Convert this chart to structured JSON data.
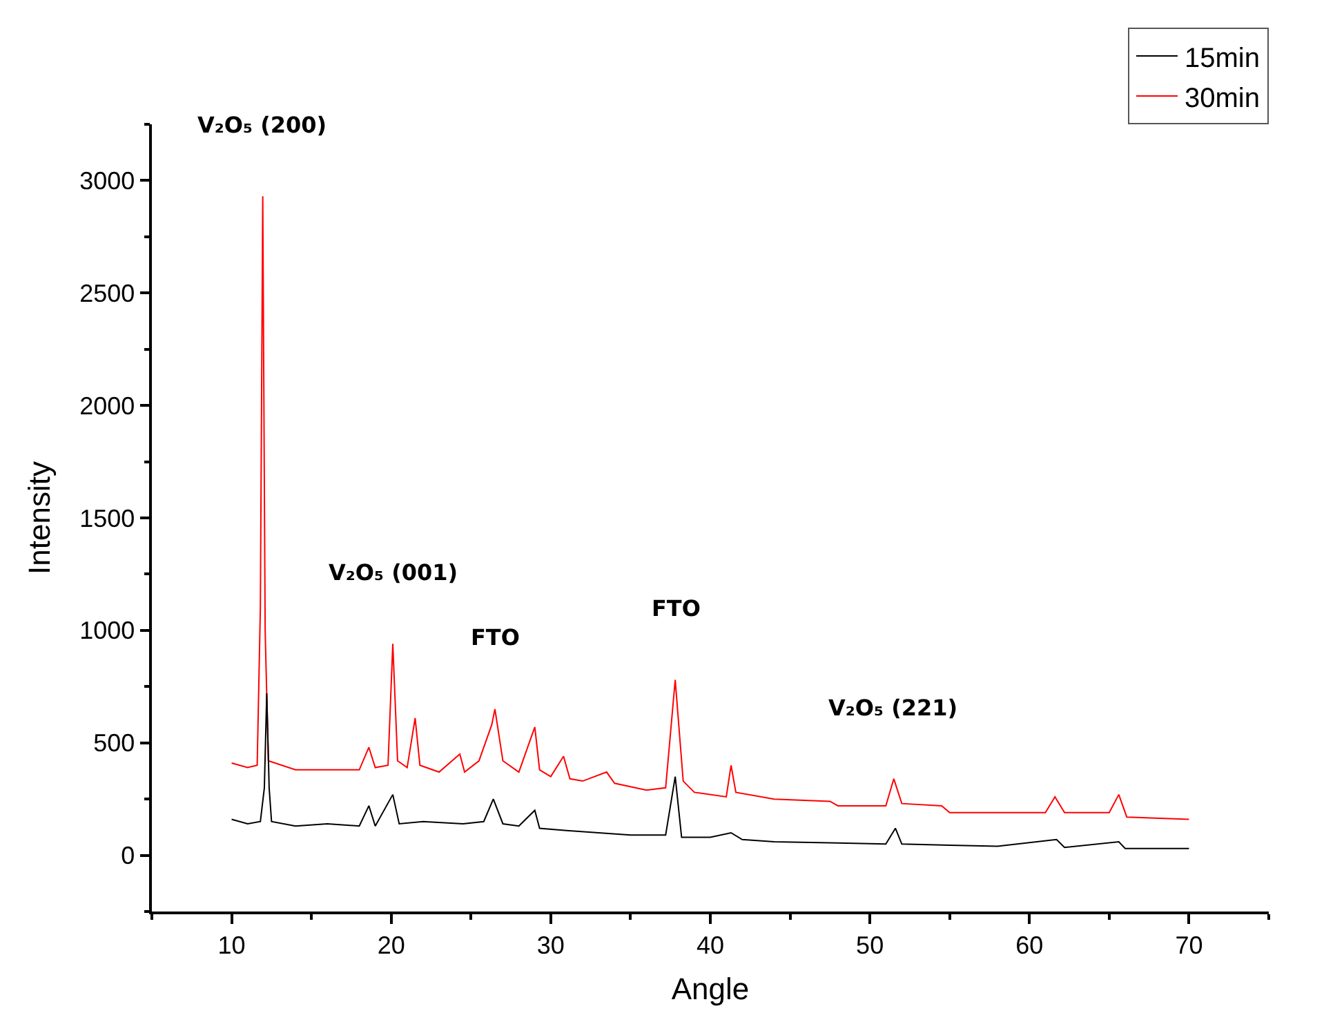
{
  "chart_data": {
    "type": "line",
    "xlabel": "Angle",
    "ylabel": "Intensity",
    "xlim": [
      5,
      75
    ],
    "xticks": [
      10,
      20,
      30,
      40,
      50,
      60,
      70
    ],
    "ylim": [
      -250,
      3250
    ],
    "yticks": [
      0,
      500,
      1000,
      1500,
      2000,
      2500,
      3000
    ],
    "grid": false,
    "legend": "top right",
    "marker": "none",
    "line_style": "solid",
    "series": [
      {
        "name": "15min",
        "color": "#000000",
        "x": [
          10,
          11,
          11.8,
          12.05,
          12.2,
          12.35,
          12.5,
          14,
          16,
          18,
          18.6,
          19,
          20.1,
          20.5,
          22,
          24.5,
          25.8,
          26.4,
          27,
          28,
          29,
          29.3,
          31,
          33,
          35,
          37.2,
          37.8,
          38.2,
          40,
          41.3,
          42,
          44,
          48,
          51,
          51.6,
          52,
          55,
          58,
          61.7,
          62.2,
          65.6,
          66,
          70
        ],
        "values": [
          160,
          140,
          150,
          300,
          720,
          300,
          150,
          130,
          140,
          130,
          220,
          130,
          270,
          140,
          150,
          140,
          150,
          250,
          140,
          130,
          200,
          120,
          110,
          100,
          90,
          90,
          350,
          80,
          80,
          100,
          70,
          60,
          55,
          50,
          120,
          50,
          45,
          40,
          70,
          35,
          60,
          30,
          30
        ]
      },
      {
        "name": "30min",
        "color": "#ff0000",
        "x": [
          10,
          11,
          11.6,
          11.8,
          11.95,
          12.1,
          12.3,
          14,
          16,
          18,
          18.6,
          19,
          19.8,
          20.1,
          20.4,
          21,
          21.5,
          21.8,
          23,
          24.3,
          24.6,
          25.5,
          26.3,
          26.5,
          27,
          28,
          29,
          29.3,
          30,
          30.8,
          31.2,
          32,
          33.5,
          34,
          36,
          37.2,
          37.8,
          38.3,
          39,
          41,
          41.3,
          41.6,
          44,
          47.5,
          48,
          51,
          51.5,
          52,
          54.5,
          55,
          58,
          61,
          61.6,
          62.2,
          65,
          65.6,
          66.1,
          70
        ],
        "values": [
          410,
          390,
          400,
          1100,
          2930,
          1000,
          420,
          380,
          380,
          380,
          480,
          390,
          400,
          940,
          420,
          390,
          610,
          400,
          370,
          450,
          370,
          420,
          580,
          650,
          420,
          370,
          570,
          380,
          350,
          440,
          340,
          330,
          370,
          320,
          290,
          300,
          780,
          330,
          280,
          260,
          400,
          280,
          250,
          240,
          220,
          220,
          340,
          230,
          220,
          190,
          190,
          190,
          260,
          190,
          190,
          270,
          170,
          160
        ]
      }
    ],
    "annotations": [
      {
        "text": "V₂O₅ (200)",
        "x": 11.95,
        "y": 2930
      },
      {
        "text": "V₂O₅ (001)",
        "x": 20.1,
        "y": 940
      },
      {
        "text": "FTO",
        "x": 26.5,
        "y": 650
      },
      {
        "text": "FTO",
        "x": 37.8,
        "y": 780
      },
      {
        "text": "V₂O₅ (221)",
        "x": 51.5,
        "y": 340
      }
    ]
  }
}
